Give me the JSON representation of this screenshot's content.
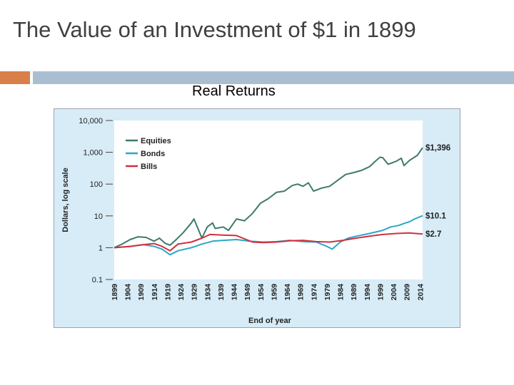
{
  "slide": {
    "title": "The Value of an Investment of $1 in 1899",
    "accent_colors": {
      "left": "#d9804a",
      "right": "#a9bfd1"
    }
  },
  "chart_caption": "Real Returns",
  "chart_data": {
    "type": "line",
    "title": "",
    "xlabel": "End of year",
    "ylabel": "Dollars, log scale",
    "yscale": "log",
    "ylim": [
      0.1,
      10000
    ],
    "xlim": [
      1899,
      2015
    ],
    "yticks": [
      {
        "value": 10000,
        "label": "10,000"
      },
      {
        "value": 1000,
        "label": "1,000"
      },
      {
        "value": 100,
        "label": "100"
      },
      {
        "value": 10,
        "label": "10"
      },
      {
        "value": 1,
        "label": "1"
      },
      {
        "value": 0.1,
        "label": "0.1"
      }
    ],
    "xticks": [
      1899,
      1904,
      1909,
      1914,
      1919,
      1924,
      1929,
      1934,
      1939,
      1944,
      1949,
      1954,
      1959,
      1964,
      1969,
      1974,
      1979,
      1984,
      1989,
      1994,
      1999,
      2004,
      2009,
      2014
    ],
    "legend": {
      "placement": "top-left"
    },
    "grid": false,
    "colors": {
      "plot_background": "#ffffff",
      "panel_background": "#d7ecf7"
    },
    "series": [
      {
        "name": "Equities",
        "color": "#3d7a6a",
        "end_label": "$1,396",
        "x": [
          1899,
          1902,
          1905,
          1908,
          1911,
          1914,
          1916,
          1918,
          1920,
          1922,
          1925,
          1928,
          1929,
          1932,
          1934,
          1936,
          1937,
          1940,
          1942,
          1945,
          1948,
          1951,
          1954,
          1957,
          1960,
          1963,
          1966,
          1968,
          1970,
          1972,
          1974,
          1977,
          1980,
          1983,
          1986,
          1989,
          1992,
          1995,
          1998,
          1999,
          2000,
          2002,
          2005,
          2007,
          2008,
          2010,
          2013,
          2015
        ],
        "values": [
          1,
          1.3,
          1.8,
          2.2,
          2.1,
          1.6,
          2.0,
          1.4,
          1.2,
          1.7,
          3.0,
          6.0,
          8.0,
          2.0,
          4.5,
          6.0,
          4.0,
          4.5,
          3.5,
          8.0,
          7.0,
          12,
          25,
          35,
          55,
          60,
          90,
          100,
          85,
          110,
          60,
          75,
          85,
          130,
          200,
          230,
          270,
          350,
          600,
          700,
          680,
          420,
          520,
          650,
          380,
          550,
          800,
          1396
        ]
      },
      {
        "name": "Bonds",
        "color": "#2aa7c9",
        "end_label": "$10.1",
        "x": [
          1899,
          1905,
          1910,
          1914,
          1917,
          1920,
          1923,
          1928,
          1932,
          1936,
          1940,
          1945,
          1950,
          1955,
          1960,
          1965,
          1970,
          1975,
          1979,
          1981,
          1984,
          1987,
          1990,
          1995,
          2000,
          2003,
          2006,
          2008,
          2010,
          2012,
          2015
        ],
        "values": [
          1,
          1.1,
          1.25,
          1.1,
          0.9,
          0.6,
          0.8,
          1.0,
          1.3,
          1.6,
          1.7,
          1.8,
          1.6,
          1.5,
          1.55,
          1.7,
          1.55,
          1.5,
          1.1,
          0.9,
          1.5,
          2.0,
          2.3,
          2.8,
          3.5,
          4.5,
          5.0,
          5.8,
          6.5,
          8.0,
          10.1
        ]
      },
      {
        "name": "Bills",
        "color": "#d1303d",
        "end_label": "$2.7",
        "x": [
          1899,
          1905,
          1910,
          1914,
          1917,
          1920,
          1923,
          1928,
          1932,
          1935,
          1940,
          1945,
          1948,
          1951,
          1955,
          1960,
          1965,
          1970,
          1975,
          1980,
          1985,
          1990,
          1995,
          2000,
          2005,
          2010,
          2015
        ],
        "values": [
          1,
          1.1,
          1.25,
          1.35,
          1.1,
          0.8,
          1.3,
          1.5,
          2.0,
          2.6,
          2.5,
          2.4,
          1.9,
          1.5,
          1.45,
          1.5,
          1.65,
          1.7,
          1.55,
          1.5,
          1.7,
          2.0,
          2.3,
          2.6,
          2.8,
          2.9,
          2.7
        ]
      }
    ]
  }
}
